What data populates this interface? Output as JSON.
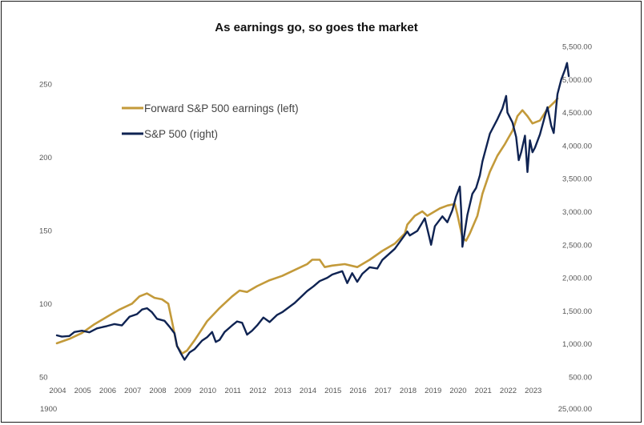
{
  "chart_data": {
    "type": "line",
    "title": "As earnings  go, so goes the market",
    "xlabel": "",
    "ylabel_left": "",
    "ylabel_right": "",
    "x_ticks": [
      "2004",
      "2005",
      "2006",
      "2007",
      "2008",
      "2009",
      "2010",
      "2011",
      "2012",
      "2013",
      "2014",
      "2015",
      "2016",
      "2017",
      "2018",
      "2019",
      "2020",
      "2021",
      "2022",
      "2023"
    ],
    "x_range": [
      2004.0,
      2024.0
    ],
    "y_left_ticks": [
      "250",
      "200",
      "150",
      "100",
      "50"
    ],
    "y_left_range": [
      50,
      275
    ],
    "y_right_ticks": [
      "5,500.00",
      "5,000.00",
      "4,500.00",
      "4,000.00",
      "3,500.00",
      "3,000.00",
      "2,500.00",
      "2,000.00",
      "1,500.00",
      "1,000.00",
      "500.00"
    ],
    "y_right_range": [
      500,
      5500
    ],
    "corner_labels": {
      "left": "1900",
      "right": "25,000.00"
    },
    "legend_position": "upper-left",
    "series": [
      {
        "name": "Forward S&P 500 earnings (left)",
        "axis": "left",
        "color": "#C39A3A",
        "points": [
          [
            2004.0,
            73
          ],
          [
            2004.5,
            76
          ],
          [
            2005.0,
            80
          ],
          [
            2005.5,
            86
          ],
          [
            2006.0,
            91
          ],
          [
            2006.5,
            96
          ],
          [
            2007.0,
            100
          ],
          [
            2007.3,
            105
          ],
          [
            2007.6,
            107
          ],
          [
            2007.9,
            104
          ],
          [
            2008.2,
            103
          ],
          [
            2008.45,
            100
          ],
          [
            2008.6,
            88
          ],
          [
            2008.8,
            71
          ],
          [
            2009.0,
            66
          ],
          [
            2009.2,
            68
          ],
          [
            2009.5,
            75
          ],
          [
            2010.0,
            88
          ],
          [
            2010.5,
            97
          ],
          [
            2011.0,
            105
          ],
          [
            2011.3,
            109
          ],
          [
            2011.6,
            108
          ],
          [
            2012.0,
            112
          ],
          [
            2012.5,
            116
          ],
          [
            2013.0,
            119
          ],
          [
            2013.5,
            123
          ],
          [
            2014.0,
            127
          ],
          [
            2014.2,
            130
          ],
          [
            2014.5,
            130
          ],
          [
            2014.7,
            125
          ],
          [
            2015.0,
            126
          ],
          [
            2015.5,
            127
          ],
          [
            2016.0,
            125
          ],
          [
            2016.5,
            130
          ],
          [
            2017.0,
            136
          ],
          [
            2017.5,
            141
          ],
          [
            2017.9,
            148
          ],
          [
            2018.0,
            154
          ],
          [
            2018.3,
            160
          ],
          [
            2018.6,
            163
          ],
          [
            2018.8,
            160
          ],
          [
            2019.0,
            162
          ],
          [
            2019.3,
            165
          ],
          [
            2019.6,
            167
          ],
          [
            2019.9,
            168
          ],
          [
            2020.0,
            161
          ],
          [
            2020.2,
            145
          ],
          [
            2020.35,
            143
          ],
          [
            2020.5,
            148
          ],
          [
            2020.8,
            160
          ],
          [
            2021.0,
            175
          ],
          [
            2021.3,
            190
          ],
          [
            2021.6,
            201
          ],
          [
            2021.9,
            209
          ],
          [
            2022.0,
            212
          ],
          [
            2022.2,
            218
          ],
          [
            2022.4,
            228
          ],
          [
            2022.6,
            232
          ],
          [
            2022.8,
            228
          ],
          [
            2023.0,
            223
          ],
          [
            2023.3,
            225
          ],
          [
            2023.6,
            233
          ],
          [
            2023.9,
            238
          ],
          [
            2024.0,
            240
          ]
        ]
      },
      {
        "name": "S&P 500 (right)",
        "axis": "right",
        "color": "#0F2352",
        "points": [
          [
            2004.0,
            1130
          ],
          [
            2004.2,
            1110
          ],
          [
            2004.5,
            1120
          ],
          [
            2004.7,
            1180
          ],
          [
            2005.0,
            1200
          ],
          [
            2005.3,
            1175
          ],
          [
            2005.6,
            1235
          ],
          [
            2006.0,
            1270
          ],
          [
            2006.3,
            1300
          ],
          [
            2006.6,
            1280
          ],
          [
            2006.9,
            1410
          ],
          [
            2007.2,
            1450
          ],
          [
            2007.4,
            1520
          ],
          [
            2007.6,
            1540
          ],
          [
            2007.8,
            1480
          ],
          [
            2008.0,
            1380
          ],
          [
            2008.3,
            1350
          ],
          [
            2008.5,
            1260
          ],
          [
            2008.7,
            1160
          ],
          [
            2008.8,
            970
          ],
          [
            2008.95,
            860
          ],
          [
            2009.1,
            760
          ],
          [
            2009.3,
            870
          ],
          [
            2009.5,
            920
          ],
          [
            2009.8,
            1050
          ],
          [
            2010.0,
            1100
          ],
          [
            2010.2,
            1180
          ],
          [
            2010.35,
            1030
          ],
          [
            2010.5,
            1060
          ],
          [
            2010.7,
            1180
          ],
          [
            2011.0,
            1280
          ],
          [
            2011.2,
            1340
          ],
          [
            2011.4,
            1320
          ],
          [
            2011.6,
            1140
          ],
          [
            2011.8,
            1200
          ],
          [
            2012.0,
            1280
          ],
          [
            2012.25,
            1400
          ],
          [
            2012.5,
            1330
          ],
          [
            2012.8,
            1440
          ],
          [
            2013.0,
            1480
          ],
          [
            2013.5,
            1620
          ],
          [
            2014.0,
            1800
          ],
          [
            2014.25,
            1870
          ],
          [
            2014.5,
            1950
          ],
          [
            2014.8,
            2000
          ],
          [
            2015.0,
            2050
          ],
          [
            2015.4,
            2100
          ],
          [
            2015.6,
            1920
          ],
          [
            2015.8,
            2070
          ],
          [
            2016.0,
            1940
          ],
          [
            2016.2,
            2060
          ],
          [
            2016.5,
            2160
          ],
          [
            2016.8,
            2140
          ],
          [
            2017.0,
            2270
          ],
          [
            2017.5,
            2440
          ],
          [
            2018.0,
            2700
          ],
          [
            2018.1,
            2640
          ],
          [
            2018.4,
            2710
          ],
          [
            2018.7,
            2900
          ],
          [
            2018.85,
            2660
          ],
          [
            2018.95,
            2500
          ],
          [
            2019.1,
            2780
          ],
          [
            2019.4,
            2930
          ],
          [
            2019.6,
            2840
          ],
          [
            2019.8,
            3020
          ],
          [
            2019.95,
            3230
          ],
          [
            2020.1,
            3380
          ],
          [
            2020.15,
            3030
          ],
          [
            2020.2,
            2470
          ],
          [
            2020.4,
            2950
          ],
          [
            2020.6,
            3270
          ],
          [
            2020.75,
            3360
          ],
          [
            2020.9,
            3550
          ],
          [
            2021.0,
            3760
          ],
          [
            2021.3,
            4180
          ],
          [
            2021.6,
            4400
          ],
          [
            2021.8,
            4560
          ],
          [
            2021.95,
            4750
          ],
          [
            2022.0,
            4500
          ],
          [
            2022.2,
            4350
          ],
          [
            2022.35,
            4130
          ],
          [
            2022.45,
            3780
          ],
          [
            2022.55,
            3900
          ],
          [
            2022.7,
            4150
          ],
          [
            2022.8,
            3600
          ],
          [
            2022.9,
            4080
          ],
          [
            2023.0,
            3900
          ],
          [
            2023.1,
            3970
          ],
          [
            2023.3,
            4170
          ],
          [
            2023.5,
            4450
          ],
          [
            2023.6,
            4580
          ],
          [
            2023.75,
            4300
          ],
          [
            2023.85,
            4190
          ],
          [
            2023.95,
            4590
          ],
          [
            2024.0,
            4780
          ],
          [
            2024.15,
            5000
          ],
          [
            2024.3,
            5150
          ],
          [
            2024.38,
            5250
          ],
          [
            2024.45,
            5050
          ]
        ]
      }
    ]
  }
}
